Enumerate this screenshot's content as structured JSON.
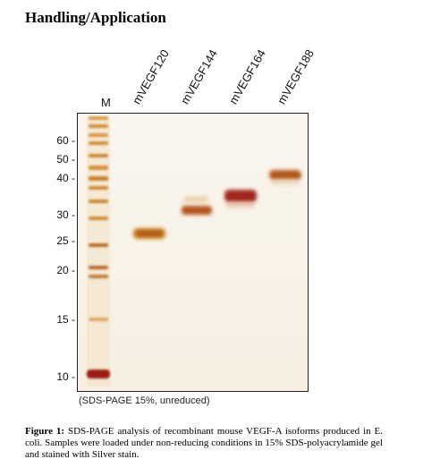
{
  "heading": "Handling/Application",
  "marker_label": "M",
  "lanes": [
    "mVEGF120",
    "mVEGF144",
    "mVEGF164",
    "mVEGF188"
  ],
  "mw_markers": [
    "60 -",
    "50 -",
    "40 -",
    "30 -",
    "25 -",
    "20 -",
    "15 -",
    "10 -"
  ],
  "gel_caption": "(SDS-PAGE 15%, unreduced)",
  "figure_caption": {
    "label": "Figure 1:",
    "text": "SDS-PAGE analysis of recombinant mouse VEGF-A isoforms produced in E. coli. Samples were loaded under non-reducing conditions in 15% SDS-polyacrylamide gel and stained with Silver stain."
  },
  "colors": {
    "gel_background": "#f6efe2",
    "marker_band": "#c98a2e",
    "sample_band": "#b5511a",
    "strong_band": "#9e1e12"
  }
}
